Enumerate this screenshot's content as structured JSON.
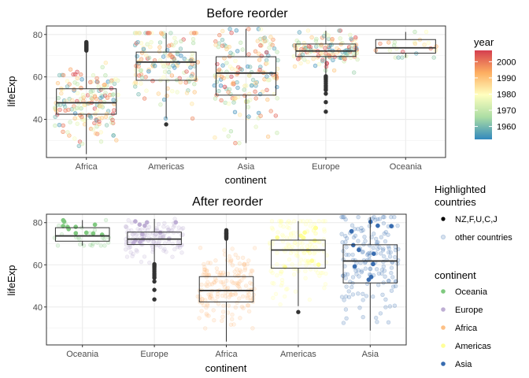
{
  "chart_data": [
    {
      "type": "boxplot+jitter",
      "title": "Before reorder",
      "xlabel": "continent",
      "ylabel": "lifeExp",
      "categories": [
        "Africa",
        "Americas",
        "Asia",
        "Europe",
        "Oceania"
      ],
      "ylim": [
        22,
        84
      ],
      "yticks": [
        40,
        60,
        80
      ],
      "point_color_by": "year",
      "boxes": [
        {
          "category": "Africa",
          "q1": 42.4,
          "median": 47.8,
          "q3": 54.4,
          "whisker_low": 23.6,
          "whisker_high": 72.0,
          "outliers": [
            72.4,
            72.8,
            73.0,
            73.3,
            73.6,
            73.9,
            74.2,
            74.5,
            74.8,
            75.0,
            75.3,
            75.6,
            76.0,
            76.4
          ]
        },
        {
          "category": "Americas",
          "q1": 58.4,
          "median": 67.0,
          "q3": 71.7,
          "whisker_low": 40.4,
          "whisker_high": 80.7,
          "outliers": [
            37.6
          ]
        },
        {
          "category": "Asia",
          "q1": 51.4,
          "median": 61.8,
          "q3": 69.5,
          "whisker_low": 28.8,
          "whisker_high": 82.6,
          "outliers": []
        },
        {
          "category": "Europe",
          "q1": 69.6,
          "median": 72.2,
          "q3": 75.5,
          "whisker_low": 61.0,
          "whisker_high": 81.8,
          "outliers": [
            43.6,
            48.1,
            52.1,
            53.8,
            54.3,
            55.2,
            56.0,
            57.0,
            57.9,
            58.7,
            59.3,
            59.8,
            60.3
          ]
        },
        {
          "category": "Oceania",
          "q1": 71.2,
          "median": 73.7,
          "q3": 77.6,
          "whisker_low": 69.1,
          "whisker_high": 81.2,
          "outliers": []
        }
      ],
      "color_legend": {
        "title": "year",
        "ticks": [
          1960,
          1970,
          1980,
          1990,
          2000
        ],
        "range": [
          1952,
          2007
        ],
        "colors": [
          "#3288bd",
          "#abdda4",
          "#ffffbf",
          "#fdae61",
          "#d53e4f"
        ]
      },
      "grid": true,
      "legend_position": "right"
    },
    {
      "type": "boxplot+jitter",
      "title": "After reorder",
      "xlabel": "continent",
      "ylabel": "lifeExp",
      "categories": [
        "Oceania",
        "Europe",
        "Africa",
        "Americas",
        "Asia"
      ],
      "ylim": [
        22,
        84
      ],
      "yticks": [
        40,
        60,
        80
      ],
      "boxes": [
        {
          "category": "Oceania",
          "q1": 71.2,
          "median": 73.7,
          "q3": 77.6,
          "whisker_low": 69.1,
          "whisker_high": 81.2,
          "outliers": []
        },
        {
          "category": "Europe",
          "q1": 69.6,
          "median": 72.2,
          "q3": 75.5,
          "whisker_low": 61.0,
          "whisker_high": 81.8,
          "outliers": [
            43.6,
            48.1,
            52.1,
            53.8,
            54.3,
            55.2,
            56.0,
            57.0,
            57.9,
            58.7,
            59.3,
            59.8,
            60.3
          ]
        },
        {
          "category": "Africa",
          "q1": 42.4,
          "median": 47.8,
          "q3": 54.4,
          "whisker_low": 23.6,
          "whisker_high": 72.0,
          "outliers": [
            72.4,
            72.8,
            73.0,
            73.3,
            73.6,
            73.9,
            74.2,
            74.5,
            74.8,
            75.0,
            75.3,
            75.6,
            76.0,
            76.4
          ]
        },
        {
          "category": "Americas",
          "q1": 58.4,
          "median": 67.0,
          "q3": 71.7,
          "whisker_low": 40.4,
          "whisker_high": 80.7,
          "outliers": [
            37.6
          ]
        },
        {
          "category": "Asia",
          "q1": 51.4,
          "median": 61.8,
          "q3": 69.5,
          "whisker_low": 28.8,
          "whisker_high": 82.6,
          "outliers": []
        }
      ],
      "highlight_legend": {
        "title_lines": [
          "Highlighted",
          "countries"
        ],
        "items": [
          "NZ,F,U,C,J",
          "other countries"
        ]
      },
      "continent_legend": {
        "title": "continent",
        "items": [
          {
            "name": "Oceania",
            "color": "#7fc97f"
          },
          {
            "name": "Europe",
            "color": "#beaed4"
          },
          {
            "name": "Africa",
            "color": "#fdc086"
          },
          {
            "name": "Americas",
            "color": "#ffff99"
          },
          {
            "name": "Asia",
            "color": "#386cb0"
          }
        ]
      },
      "grid": true,
      "legend_position": "right"
    }
  ]
}
